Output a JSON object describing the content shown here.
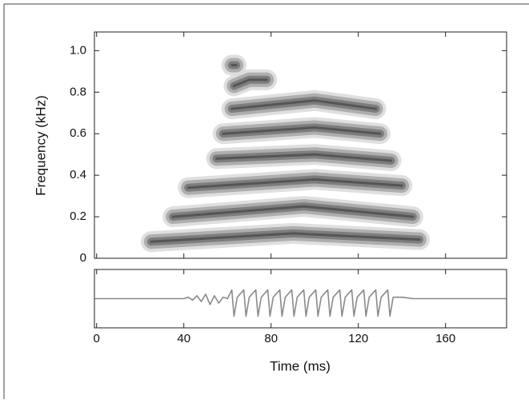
{
  "chart_data": [
    {
      "type": "spectrogram",
      "ylabel": "Frequency (kHz)",
      "color": "#555555",
      "xlim": [
        -1,
        188
      ],
      "ylim": [
        0,
        1.09
      ],
      "yticks": [
        0,
        0.2,
        0.4,
        0.6,
        0.8,
        {
          "value": 1,
          "label": "1.0"
        }
      ],
      "bands": [
        {
          "x": [
            25,
            90,
            148
          ],
          "y": [
            0.08,
            0.12,
            0.09
          ]
        },
        {
          "x": [
            35,
            95,
            145
          ],
          "y": [
            0.2,
            0.25,
            0.2
          ]
        },
        {
          "x": [
            42,
            100,
            140
          ],
          "y": [
            0.34,
            0.38,
            0.35
          ]
        },
        {
          "x": [
            55,
            100,
            135
          ],
          "y": [
            0.48,
            0.5,
            0.47
          ]
        },
        {
          "x": [
            58,
            100,
            130
          ],
          "y": [
            0.6,
            0.63,
            0.6
          ]
        },
        {
          "x": [
            62,
            100,
            128
          ],
          "y": [
            0.72,
            0.76,
            0.72
          ]
        },
        {
          "x": [
            63,
            70,
            78
          ],
          "y": [
            0.83,
            0.86,
            0.86
          ]
        },
        {
          "x": [
            62,
            64
          ],
          "y": [
            0.93,
            0.93
          ]
        }
      ]
    },
    {
      "type": "line",
      "xlabel": "Time (ms)",
      "color": "#8a8a8a",
      "xlim": [
        -1,
        188
      ],
      "ylim": [
        -1,
        1
      ],
      "xticks": [
        0,
        40,
        80,
        120,
        160
      ],
      "x": [
        -1,
        20,
        40,
        42,
        44,
        46,
        48,
        50,
        52,
        54,
        56,
        58,
        60,
        62,
        63,
        64.5,
        67.5,
        68.5,
        70,
        73,
        74,
        75.5,
        78.5,
        79.5,
        81,
        84,
        85,
        86.5,
        89.5,
        90.5,
        92,
        95,
        96,
        97.5,
        100.5,
        101.5,
        103,
        106,
        107,
        108.5,
        111.5,
        112.5,
        114,
        117,
        118,
        119.5,
        122.5,
        123.5,
        125,
        128,
        129,
        130.5,
        133.5,
        134.5,
        136,
        140,
        145,
        188
      ],
      "values": [
        0,
        0,
        0,
        0.05,
        -0.05,
        0.1,
        -0.1,
        0.15,
        -0.2,
        0.1,
        -0.15,
        0.05,
        0,
        0.3,
        -0.6,
        0.05,
        0.3,
        -0.6,
        0.05,
        0.3,
        -0.6,
        0.05,
        0.3,
        -0.6,
        0.05,
        0.3,
        -0.6,
        0.05,
        0.3,
        -0.6,
        0.05,
        0.3,
        -0.6,
        0.05,
        0.3,
        -0.6,
        0.05,
        0.3,
        -0.6,
        0.05,
        0.3,
        -0.6,
        0.05,
        0.3,
        -0.6,
        0.05,
        0.3,
        -0.6,
        0.05,
        0.3,
        -0.6,
        0.05,
        0.3,
        -0.6,
        0.05,
        0.05,
        0,
        0
      ]
    }
  ]
}
